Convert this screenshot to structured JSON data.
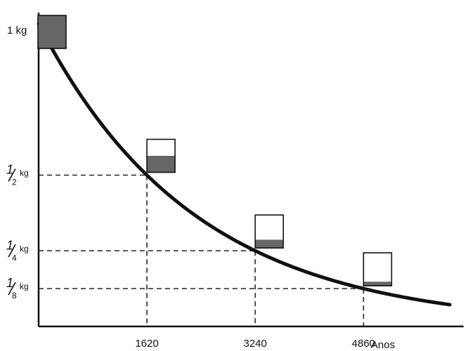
{
  "chart_data": {
    "type": "line",
    "title": "",
    "xlabel": "Anos",
    "ylabel": "",
    "x_ticks": [
      "1620",
      "3240",
      "4860"
    ],
    "y_ticks": [
      {
        "value": 1,
        "label": "1 kg"
      },
      {
        "value": 0.5,
        "num": "1",
        "den": "2",
        "unit": "kg"
      },
      {
        "value": 0.25,
        "num": "1",
        "den": "4",
        "unit": "kg"
      },
      {
        "value": 0.125,
        "num": "1",
        "den": "8",
        "unit": "kg"
      }
    ],
    "half_life": 1620,
    "series": [
      {
        "x": [
          0,
          1620,
          3240,
          4860,
          6150
        ],
        "y": [
          1,
          0.5,
          0.25,
          0.125,
          0.0718
        ]
      }
    ],
    "markers": [
      {
        "x": 1620,
        "y": 0.5
      },
      {
        "x": 3240,
        "y": 0.25
      },
      {
        "x": 4860,
        "y": 0.125
      }
    ],
    "samples": [
      {
        "x": 200,
        "fill": 1
      },
      {
        "x": 1620,
        "fill": 0.5
      },
      {
        "x": 3240,
        "fill": 0.25
      },
      {
        "x": 4860,
        "fill": 0.125
      }
    ],
    "xlim": [
      0,
      6200
    ],
    "ylim": [
      0,
      1
    ],
    "colors": {
      "curve": "#111111",
      "sample_fill": "#666666",
      "guide": "#222222"
    }
  }
}
